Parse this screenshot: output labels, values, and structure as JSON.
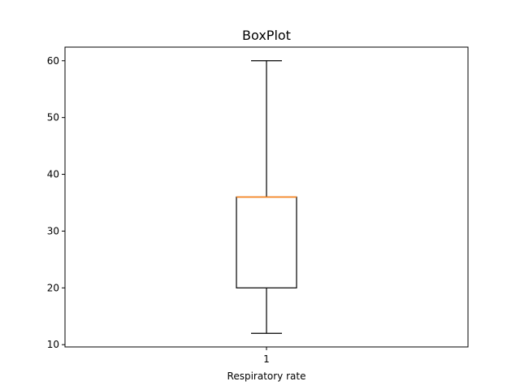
{
  "chart_data": {
    "type": "box",
    "title": "BoxPlot",
    "xlabel": "Respiratory rate",
    "ylabel": "",
    "categories": [
      "1"
    ],
    "boxes": [
      {
        "category": "1",
        "whisker_low": 12,
        "q1": 20,
        "median": 36,
        "q3": 36,
        "whisker_high": 60
      }
    ],
    "ylim": [
      9.6,
      62.4
    ],
    "yticks": [
      10,
      20,
      30,
      40,
      50,
      60
    ],
    "grid": false,
    "colors": {
      "median": "#ff7f0e",
      "box": "#000000"
    }
  }
}
